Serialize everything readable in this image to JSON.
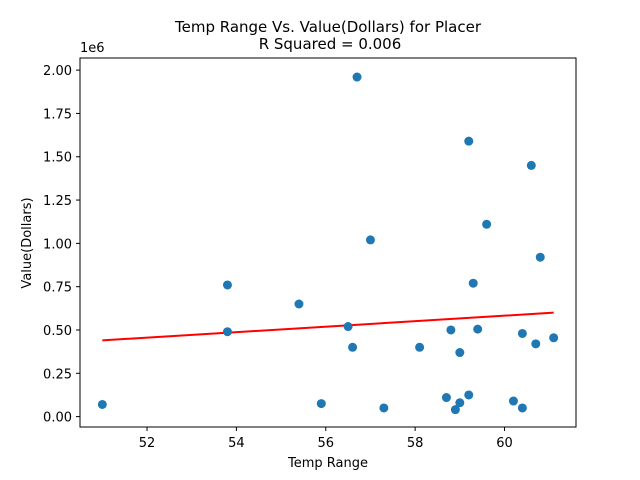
{
  "chart_data": {
    "type": "scatter",
    "title": "Temp Range Vs. Value(Dollars) for Placer",
    "subtitle": "R Squared =  0.006",
    "xlabel": "Temp Range",
    "ylabel": "Value(Dollars)",
    "y_offset_label": "1e6",
    "xlim": [
      50.5,
      61.6
    ],
    "ylim": [
      -0.06,
      2.07
    ],
    "x_ticks": [
      52,
      54,
      56,
      58,
      60
    ],
    "x_tick_labels": [
      "52",
      "54",
      "56",
      "58",
      "60"
    ],
    "y_ticks": [
      0,
      0.25,
      0.5,
      0.75,
      1.0,
      1.25,
      1.5,
      1.75,
      2.0
    ],
    "y_tick_labels": [
      "0.00",
      "0.25",
      "0.50",
      "0.75",
      "1.00",
      "1.25",
      "1.50",
      "1.75",
      "2.00"
    ],
    "grid": false,
    "marker_color": "#1f77b4",
    "line_color": "#ff0000",
    "points": [
      {
        "x": 51.0,
        "y": 0.07
      },
      {
        "x": 53.8,
        "y": 0.76
      },
      {
        "x": 53.8,
        "y": 0.49
      },
      {
        "x": 55.4,
        "y": 0.65
      },
      {
        "x": 55.9,
        "y": 0.075
      },
      {
        "x": 56.5,
        "y": 0.52
      },
      {
        "x": 56.6,
        "y": 0.4
      },
      {
        "x": 56.7,
        "y": 1.96
      },
      {
        "x": 57.0,
        "y": 1.02
      },
      {
        "x": 57.3,
        "y": 0.05
      },
      {
        "x": 58.1,
        "y": 0.4
      },
      {
        "x": 58.7,
        "y": 0.11
      },
      {
        "x": 58.8,
        "y": 0.5
      },
      {
        "x": 58.9,
        "y": 0.04
      },
      {
        "x": 59.0,
        "y": 0.37
      },
      {
        "x": 59.0,
        "y": 0.08
      },
      {
        "x": 59.2,
        "y": 1.59
      },
      {
        "x": 59.2,
        "y": 0.125
      },
      {
        "x": 59.3,
        "y": 0.77
      },
      {
        "x": 59.4,
        "y": 0.505
      },
      {
        "x": 59.6,
        "y": 1.11
      },
      {
        "x": 60.2,
        "y": 0.09
      },
      {
        "x": 60.4,
        "y": 0.48
      },
      {
        "x": 60.4,
        "y": 0.05
      },
      {
        "x": 60.6,
        "y": 1.45
      },
      {
        "x": 60.7,
        "y": 0.42
      },
      {
        "x": 60.8,
        "y": 0.92
      },
      {
        "x": 61.1,
        "y": 0.455
      }
    ],
    "regression_line": {
      "x": [
        51.0,
        61.1
      ],
      "y": [
        0.44,
        0.6
      ]
    }
  }
}
